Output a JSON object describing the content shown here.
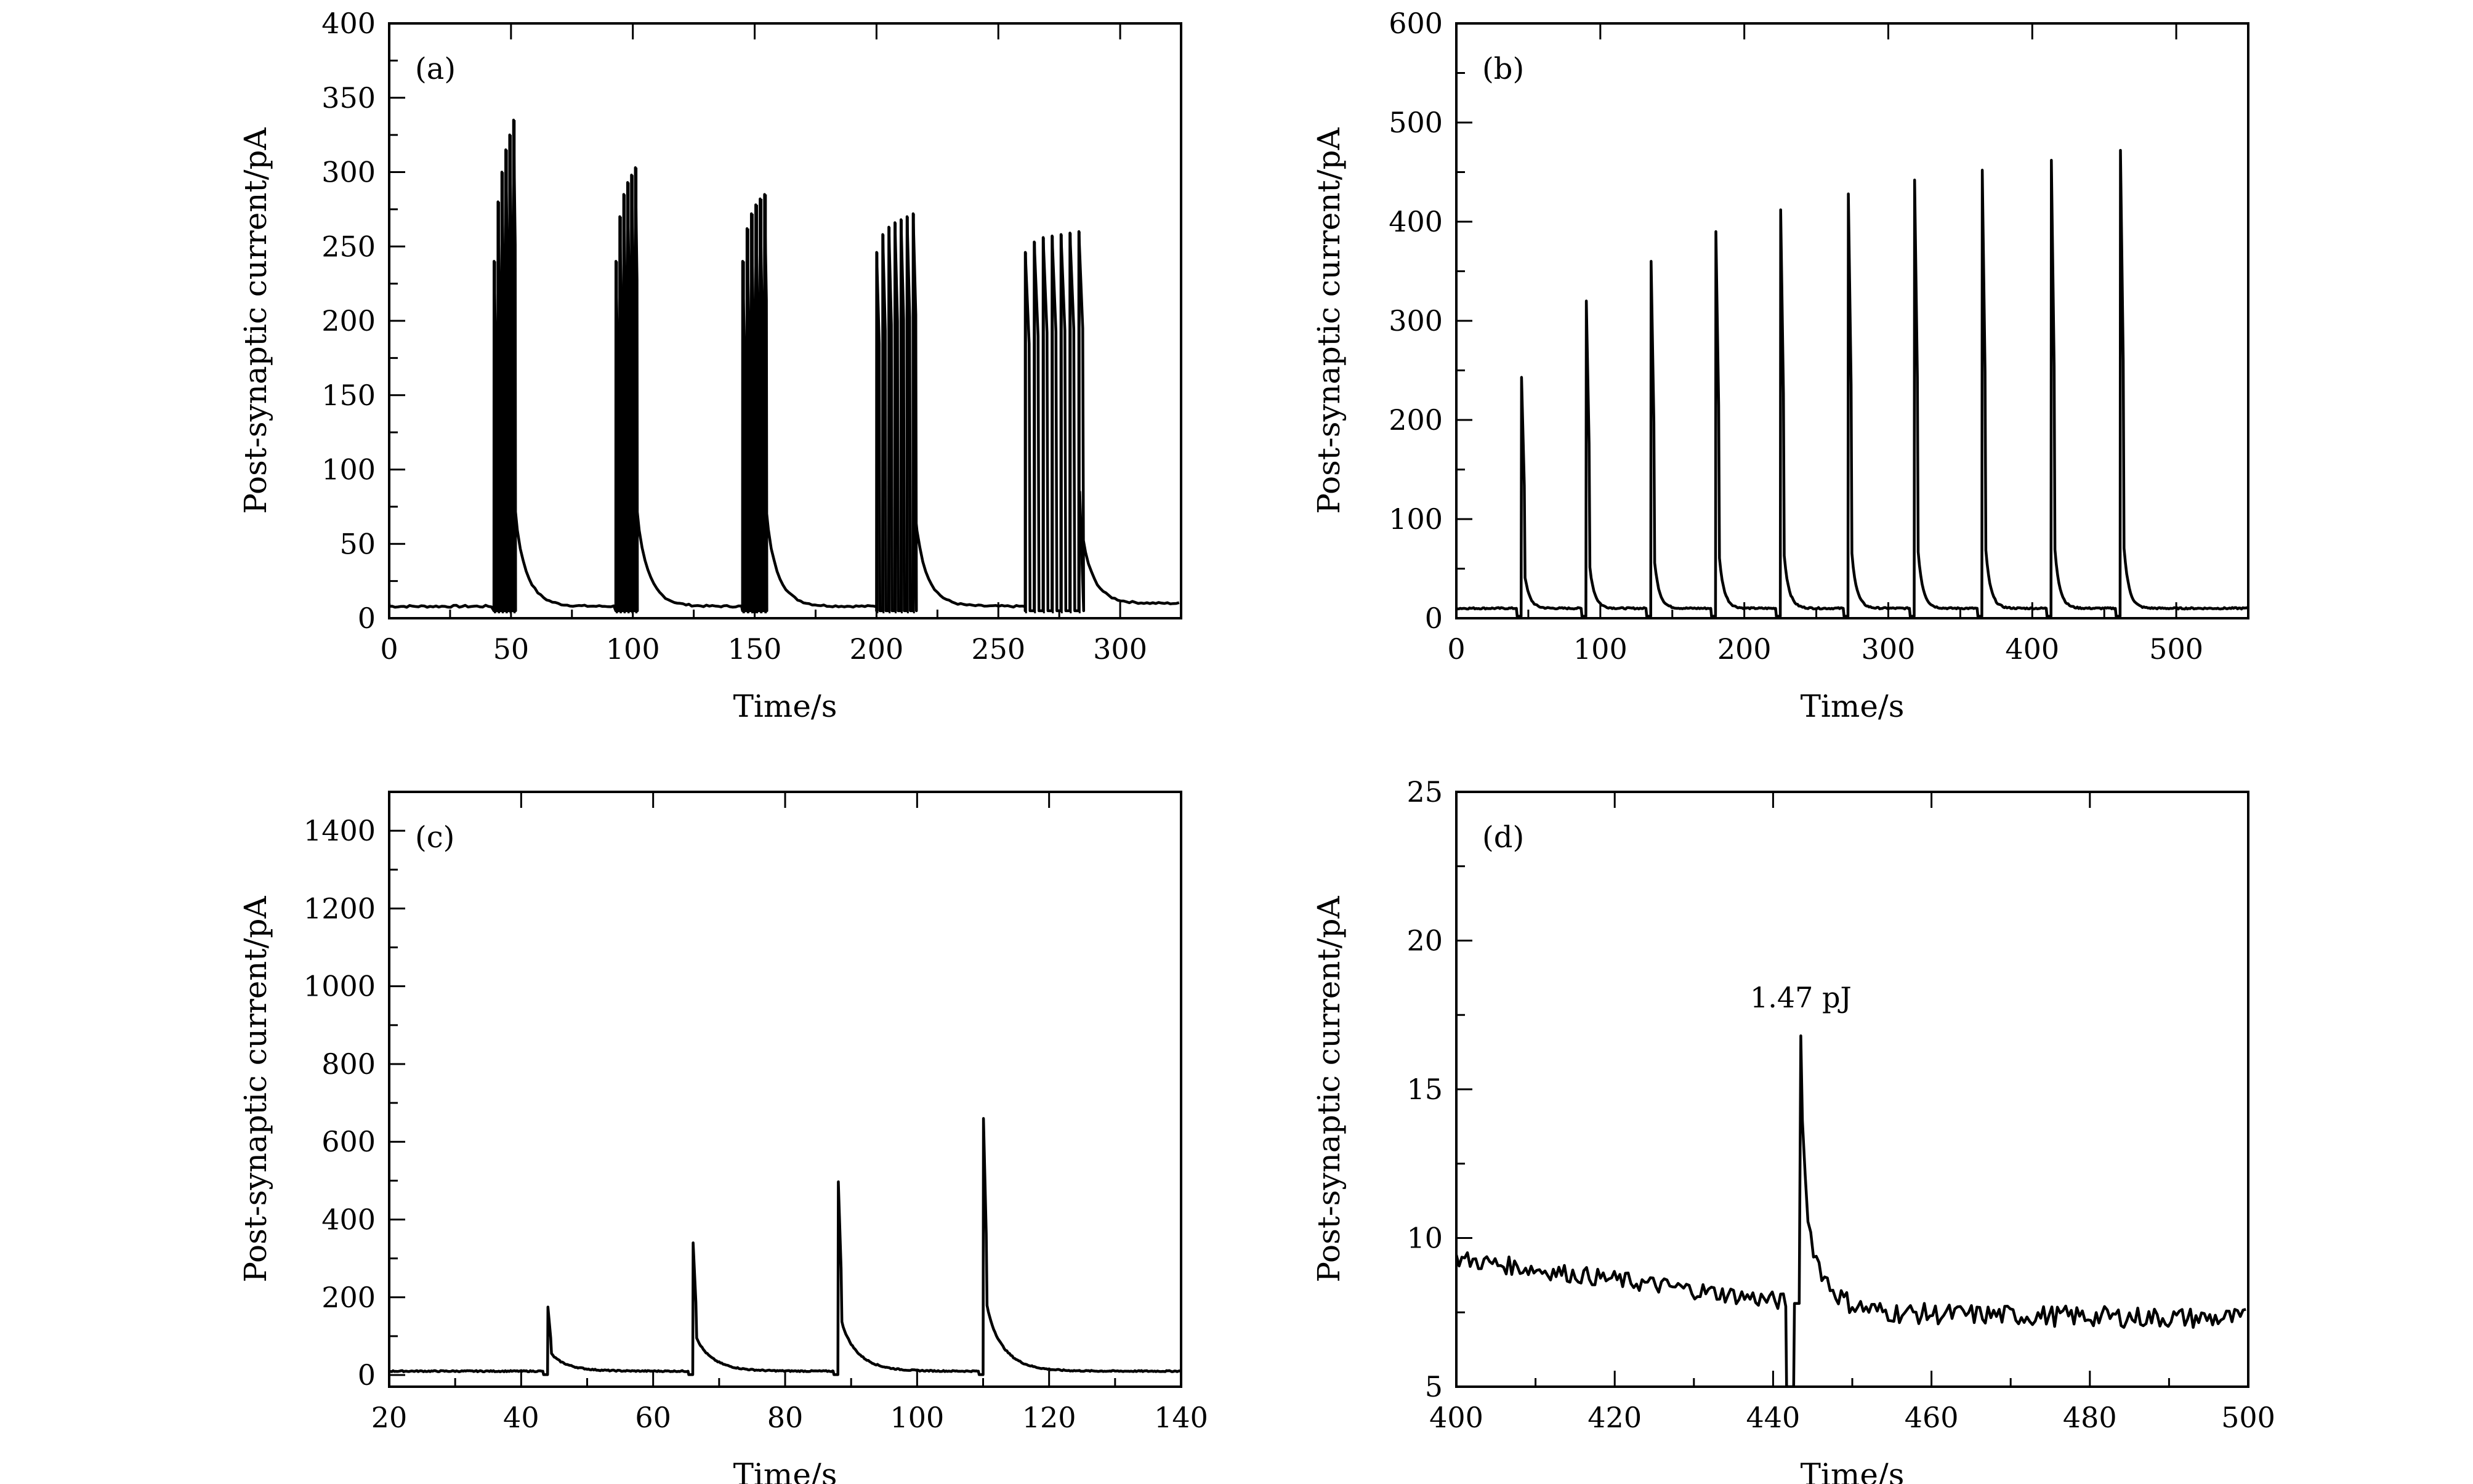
{
  "chart_data": [
    {
      "type": "line",
      "label": "(a)",
      "xlabel": "Time/s",
      "ylabel": "Post-synaptic current/pA",
      "xlim": [
        0,
        325
      ],
      "ylim": [
        0,
        400
      ],
      "xticks": [
        0,
        50,
        100,
        150,
        200,
        250,
        300
      ],
      "yticks": [
        0,
        50,
        100,
        150,
        200,
        250,
        300,
        350,
        400
      ],
      "baseline": 8,
      "baseline_end": 10,
      "bursts": [
        {
          "peaks": [
            240,
            280,
            300,
            315,
            325,
            335
          ],
          "start": 43,
          "end": 51
        },
        {
          "peaks": [
            240,
            270,
            285,
            293,
            298,
            303
          ],
          "start": 93,
          "end": 101
        },
        {
          "peaks": [
            240,
            262,
            272,
            278,
            282,
            285
          ],
          "start": 145,
          "end": 154
        },
        {
          "peaks": [
            246,
            258,
            263,
            266,
            268,
            270,
            272
          ],
          "start": 200,
          "end": 215
        },
        {
          "peaks": [
            246,
            253,
            256,
            257,
            258,
            259,
            260
          ],
          "start": 261,
          "end": 283
        }
      ],
      "annotation": null
    },
    {
      "type": "line",
      "label": "(b)",
      "xlabel": "Time/s",
      "ylabel": "Post-synaptic current/pA",
      "xlim": [
        0,
        550
      ],
      "ylim": [
        0,
        600
      ],
      "xticks": [
        0,
        100,
        200,
        300,
        400,
        500
      ],
      "yticks": [
        0,
        100,
        200,
        300,
        400,
        500,
        600
      ],
      "baseline": 10,
      "spike_times": [
        45,
        90,
        135,
        180,
        225,
        272,
        318,
        365,
        413,
        461
      ],
      "spike_peaks": [
        243,
        320,
        360,
        390,
        412,
        428,
        442,
        452,
        462,
        472
      ],
      "annotation": null
    },
    {
      "type": "line",
      "label": "(c)",
      "xlabel": "Time/s",
      "ylabel": "Post-synaptic current/pA",
      "xlim": [
        20,
        140
      ],
      "ylim": [
        -30,
        1500
      ],
      "xticks": [
        20,
        40,
        60,
        80,
        100,
        120,
        140
      ],
      "yticks": [
        0,
        200,
        400,
        600,
        800,
        1000,
        1200,
        1400
      ],
      "baseline": 10,
      "spike_times": [
        44,
        66,
        88,
        110
      ],
      "spike_peaks": [
        175,
        340,
        497,
        660
      ],
      "annotation": null
    },
    {
      "type": "line",
      "label": "(d)",
      "xlabel": "Time/s",
      "ylabel": "Post-synaptic current/pA",
      "xlim": [
        400,
        500
      ],
      "ylim": [
        5,
        25
      ],
      "xticks": [
        400,
        420,
        440,
        460,
        480,
        500
      ],
      "yticks": [
        5,
        10,
        15,
        20,
        25
      ],
      "spike_time": 443.5,
      "spike_peak": 16.8,
      "annotation": "1.47 pJ"
    }
  ]
}
